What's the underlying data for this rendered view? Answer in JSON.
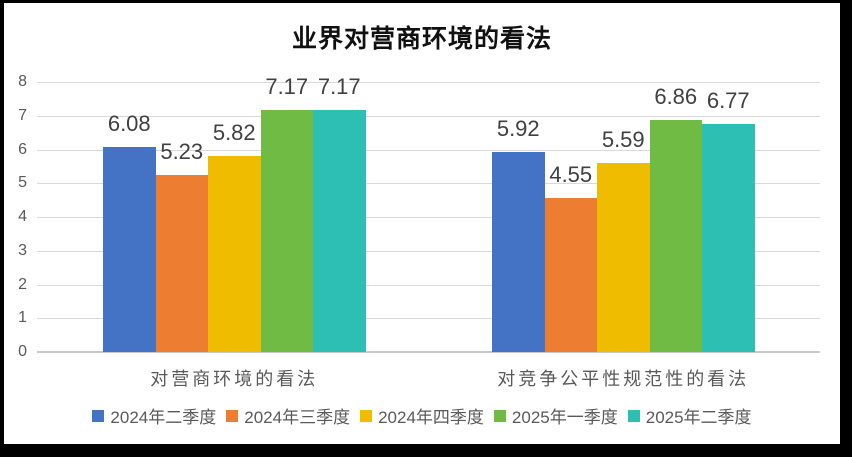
{
  "chart_data": {
    "type": "bar",
    "title": "业界对营商环境的看法",
    "categories": [
      "对营商环境的看法",
      "对竞争公平性规范性的看法"
    ],
    "series": [
      {
        "name": "2024年二季度",
        "color": "#4472C4",
        "values": [
          6.08,
          5.92
        ]
      },
      {
        "name": "2024年三季度",
        "color": "#ED7D31",
        "values": [
          5.23,
          4.55
        ]
      },
      {
        "name": "2024年四季度",
        "color": "#F0BC00",
        "values": [
          5.82,
          5.59
        ]
      },
      {
        "name": "2025年一季度",
        "color": "#70BB44",
        "values": [
          7.17,
          6.86
        ]
      },
      {
        "name": "2025年二季度",
        "color": "#2EBFB4",
        "values": [
          7.17,
          6.77
        ]
      }
    ],
    "y_axis": {
      "min": 0,
      "max": 8,
      "step": 1,
      "tick_labels": [
        "0",
        "1",
        "2",
        "3",
        "4",
        "5",
        "6",
        "7",
        "8"
      ]
    },
    "grid": true,
    "legend_position": "bottom",
    "data_label_format": "0.00"
  },
  "colors": {
    "frame_background": "#000000",
    "panel_background": "#ffffff",
    "gridline": "#D9D9D9",
    "axis_text": "#595959",
    "data_label_text": "#404040",
    "title_text": "#111111"
  }
}
